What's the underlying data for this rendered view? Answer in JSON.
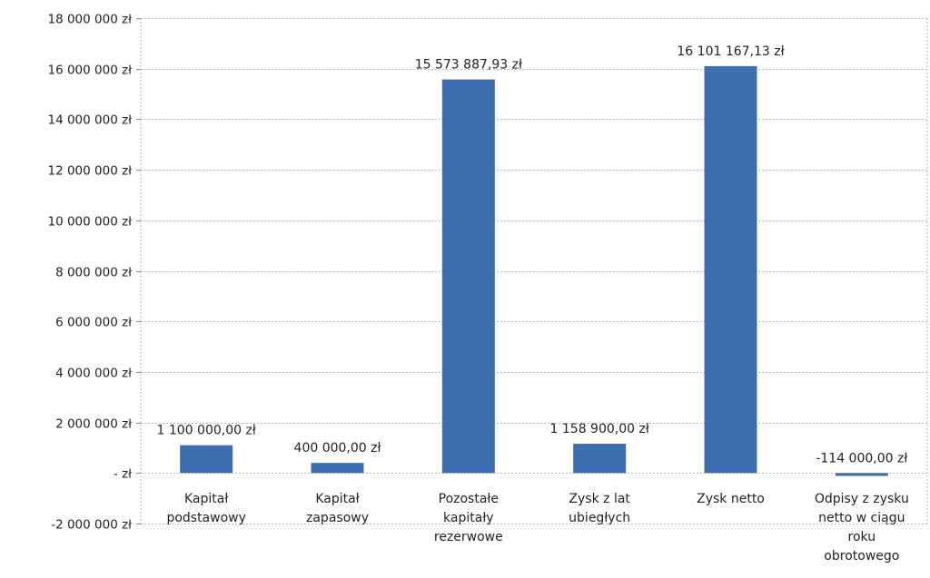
{
  "chart_data": {
    "type": "bar",
    "title": "",
    "xlabel": "",
    "ylabel": "",
    "ylim": [
      -2000000,
      18000000
    ],
    "yticks": [
      {
        "value": 18000000,
        "label": "18 000 000 zł"
      },
      {
        "value": 16000000,
        "label": "16 000 000 zł"
      },
      {
        "value": 14000000,
        "label": "14 000 000 zł"
      },
      {
        "value": 12000000,
        "label": "12 000 000 zł"
      },
      {
        "value": 10000000,
        "label": "10 000 000 zł"
      },
      {
        "value": 8000000,
        "label": "8 000 000 zł"
      },
      {
        "value": 6000000,
        "label": "6 000 000 zł"
      },
      {
        "value": 4000000,
        "label": "4 000 000 zł"
      },
      {
        "value": 2000000,
        "label": "2 000 000 zł"
      },
      {
        "value": 0,
        "label": "- zł"
      },
      {
        "value": -2000000,
        "label": "-2 000 000 zł"
      }
    ],
    "categories": [
      [
        "Kapitał",
        "podstawowy"
      ],
      [
        "Kapitał",
        "zapasowy"
      ],
      [
        "Pozostałe",
        "kapitały",
        "rezerwowe"
      ],
      [
        "Zysk z lat",
        "ubiegłych"
      ],
      [
        "Zysk netto"
      ],
      [
        "Odpisy z zysku",
        "netto w ciągu",
        "roku",
        "obrotowego"
      ]
    ],
    "values": [
      1100000.0,
      400000.0,
      15573887.93,
      1158900.0,
      16101167.13,
      -114000.0
    ],
    "data_labels": [
      "1 100 000,00 zł",
      "400 000,00 zł",
      "15 573 887,93 zł",
      "1 158 900,00 zł",
      "16 101 167,13 zł",
      "-114 000,00 zł"
    ],
    "grid": true,
    "legend": "none",
    "bar_color": "#3d6fb0",
    "gridline_color": "#b8b8b8"
  }
}
